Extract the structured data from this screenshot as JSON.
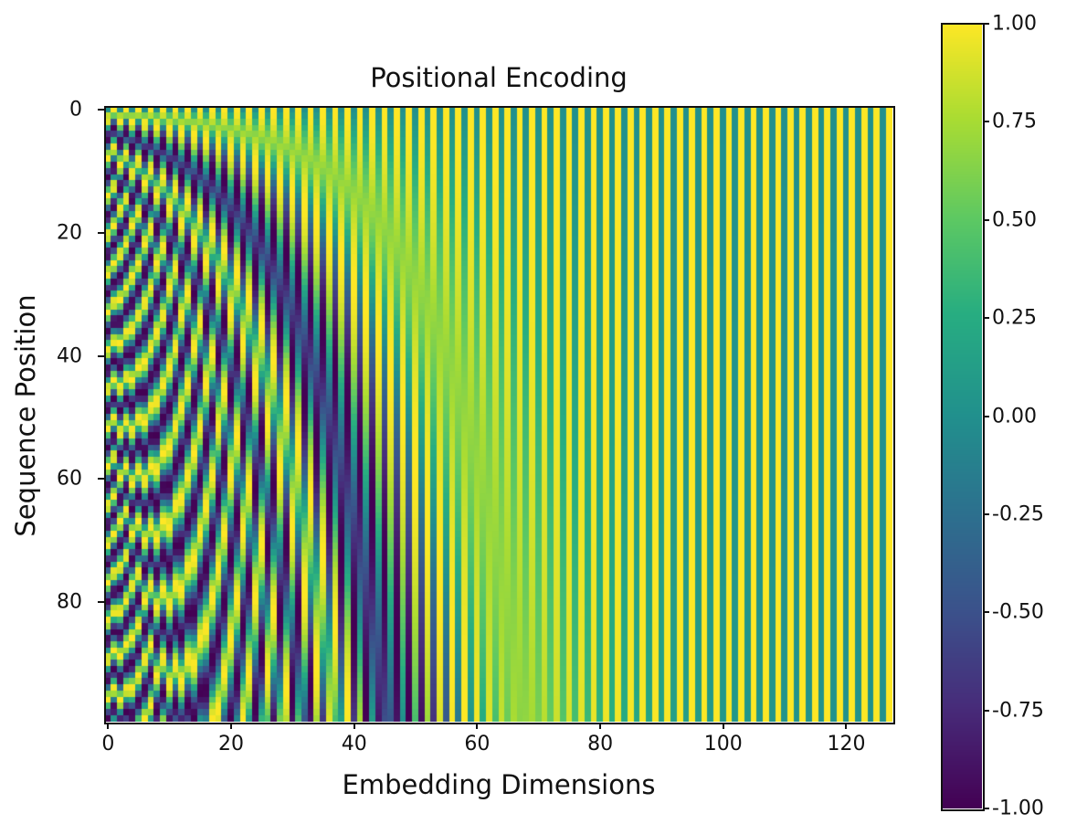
{
  "chart_data": {
    "type": "heatmap",
    "title": "Positional Encoding",
    "xlabel": "Embedding Dimensions",
    "ylabel": "Sequence Position",
    "function": "sinusoidal positional encoding: PE(pos, 2i) = sin(pos / 10000^(2i/d)), PE(pos, 2i+1) = cos(pos / 10000^(2i/d))",
    "rows": 100,
    "cols": 128,
    "d_model": 128,
    "x_range": [
      0,
      127
    ],
    "y_range": [
      0,
      99
    ],
    "value_range": [
      -1.0,
      1.0
    ],
    "colormap": "viridis",
    "x_ticks": [
      "0",
      "20",
      "40",
      "60",
      "80",
      "100",
      "120"
    ],
    "y_ticks": [
      "0",
      "20",
      "40",
      "60",
      "80"
    ],
    "colorbar_ticks": [
      "1.00",
      "0.75",
      "0.50",
      "0.25",
      "0.00",
      "-0.25",
      "-0.50",
      "-0.75",
      "-1.00"
    ],
    "grid": false
  }
}
